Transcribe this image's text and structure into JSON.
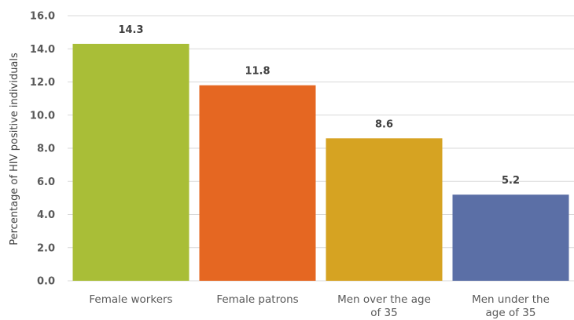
{
  "chart_data": {
    "type": "bar",
    "title": "",
    "xlabel": "",
    "ylabel": "Percentage of HIV positive individuals",
    "ylim": [
      0,
      16
    ],
    "yticks": [
      "0.0",
      "2.0",
      "4.0",
      "6.0",
      "8.0",
      "10.0",
      "12.0",
      "14.0",
      "16.0"
    ],
    "grid": true,
    "categories": [
      [
        "Female workers"
      ],
      [
        "Female patrons"
      ],
      [
        "Men over the age",
        "of 35"
      ],
      [
        "Men under the",
        "age of 35"
      ]
    ],
    "values": [
      14.3,
      11.8,
      8.6,
      5.2
    ],
    "value_labels": [
      "14.3",
      "11.8",
      "8.6",
      "5.2"
    ],
    "colors": [
      "#A9BE37",
      "#E56722",
      "#D6A322",
      "#5B6FA6"
    ],
    "gridline_color": "#D9D9D9"
  }
}
